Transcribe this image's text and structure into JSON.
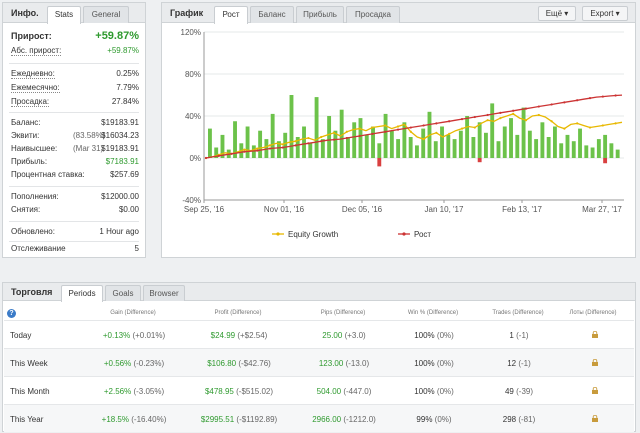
{
  "info": {
    "title": "Инфо.",
    "tabs": [
      "Stats",
      "General"
    ],
    "growth_label": "Прирост:",
    "growth_value": "+59.87%",
    "abs_growth_label": "Абс. прирост:",
    "abs_growth_value": "+59.87%",
    "daily_label": "Ежедневно:",
    "daily_value": "0.25%",
    "monthly_label": "Ежемесячно:",
    "monthly_value": "7.79%",
    "drawdown_label": "Просадка:",
    "drawdown_value": "27.84%",
    "balance_label": "Баланс:",
    "balance_value": "$19183.91",
    "equity_label": "Эквити:",
    "equity_pct": "(83.58%)",
    "equity_value": "$16034.23",
    "highest_label": "Наивысшее:",
    "highest_date": "(Mar 31)",
    "highest_value": "$19183.91",
    "profit_label": "Прибыль:",
    "profit_value": "$7183.91",
    "interest_label": "Процентная ставка:",
    "interest_value": "$257.69",
    "deposits_label": "Пополнения:",
    "deposits_value": "$12000.00",
    "withdrawals_label": "Снятия:",
    "withdrawals_value": "$0.00",
    "updated_label": "Обновлено:",
    "updated_value": "1 Hour ago",
    "tracking_label": "Отслеживание",
    "tracking_value": "5"
  },
  "chart_panel": {
    "title": "График",
    "tabs": [
      "Рост",
      "Баланс",
      "Прибыль",
      "Просадка"
    ],
    "more_label": "Ещё",
    "export_label": "Export"
  },
  "chart_data": {
    "type": "line",
    "yticks": [
      "120%",
      "80%",
      "40%",
      "0%",
      "-40%"
    ],
    "ylim": [
      -40,
      120
    ],
    "xticks": [
      "Sep 25, '16",
      "Nov 01, '16",
      "Dec 05, '16",
      "Jan 10, '17",
      "Feb 13, '17",
      "Mar 27, '17"
    ],
    "series": [
      {
        "name": "Equity Growth",
        "color": "#e8b800"
      },
      {
        "name": "Рост",
        "color": "#cc3333"
      }
    ],
    "growth": [
      0,
      1,
      2,
      3,
      4,
      5,
      6,
      6.5,
      7,
      8,
      9,
      9.5,
      10,
      11,
      12,
      13,
      14,
      15,
      16,
      17,
      17.5,
      18,
      19,
      20,
      21,
      22,
      23,
      24,
      25,
      26,
      27,
      28,
      29,
      30,
      31,
      32,
      33,
      34,
      35,
      36,
      37,
      38,
      39,
      40,
      41,
      42,
      43,
      44,
      45,
      46,
      47,
      48,
      49,
      50,
      51,
      52,
      53,
      54,
      55,
      56,
      57,
      58,
      58.5,
      59,
      59.5,
      59.87
    ],
    "equity": [
      0,
      1,
      3,
      5,
      4,
      6,
      8,
      7,
      9,
      10,
      12,
      14,
      13,
      15,
      16,
      18,
      19,
      17,
      20,
      22,
      24,
      21,
      25,
      27,
      28,
      26,
      29,
      30,
      31,
      28,
      30,
      32,
      25,
      20,
      18,
      22,
      24,
      20,
      23,
      26,
      28,
      30,
      29,
      33,
      36,
      35,
      38,
      40,
      42,
      38,
      36,
      40,
      41,
      39,
      35,
      30,
      28,
      32,
      33,
      31,
      29,
      30,
      31,
      32,
      33,
      34
    ],
    "bars": [
      28,
      10,
      22,
      8,
      35,
      14,
      30,
      12,
      26,
      18,
      42,
      16,
      24,
      60,
      20,
      30,
      14,
      58,
      18,
      40,
      26,
      46,
      20,
      34,
      38,
      22,
      30,
      14,
      42,
      26,
      18,
      34,
      20,
      12,
      28,
      44,
      16,
      30,
      22,
      18,
      26,
      40,
      20,
      34,
      24,
      52,
      16,
      30,
      38,
      22,
      48,
      26,
      18,
      34,
      20,
      30,
      14,
      22,
      16,
      28,
      12,
      10,
      18,
      22,
      14,
      8
    ]
  },
  "legend": {
    "equity": "Equity Growth",
    "growth": "Рост"
  },
  "trades": {
    "title": "Торговля",
    "tabs": [
      "Periods",
      "Goals",
      "Browser"
    ],
    "headers": [
      "Gain (Difference)",
      "Profit (Difference)",
      "Pips (Difference)",
      "Win % (Difference)",
      "Trades (Difference)",
      "Лоты (Difference)"
    ],
    "rows": [
      {
        "label": "Today",
        "gain": "+0.13%",
        "gain_diff": "(+0.01%)",
        "profit": "$24.99",
        "profit_diff": "(+$2.54)",
        "pips": "25.00",
        "pips_diff": "(+3.0)",
        "win": "100%",
        "win_diff": "(0%)",
        "trades": "1",
        "trades_diff": "(-1)"
      },
      {
        "label": "This Week",
        "gain": "+0.56%",
        "gain_diff": "(-0.23%)",
        "profit": "$106.80",
        "profit_diff": "(-$42.76)",
        "pips": "123.00",
        "pips_diff": "(-13.0)",
        "win": "100%",
        "win_diff": "(0%)",
        "trades": "12",
        "trades_diff": "(-1)"
      },
      {
        "label": "This Month",
        "gain": "+2.56%",
        "gain_diff": "(-3.05%)",
        "profit": "$478.95",
        "profit_diff": "(-$515.02)",
        "pips": "504.00",
        "pips_diff": "(-447.0)",
        "win": "100%",
        "win_diff": "(0%)",
        "trades": "49",
        "trades_diff": "(-39)"
      },
      {
        "label": "This Year",
        "gain": "+18.5%",
        "gain_diff": "(-16.40%)",
        "profit": "$2995.51",
        "profit_diff": "(-$1192.89)",
        "pips": "2966.00",
        "pips_diff": "(-1212.0)",
        "win": "99%",
        "win_diff": "(0%)",
        "trades": "298",
        "trades_diff": "(-81)"
      }
    ]
  }
}
